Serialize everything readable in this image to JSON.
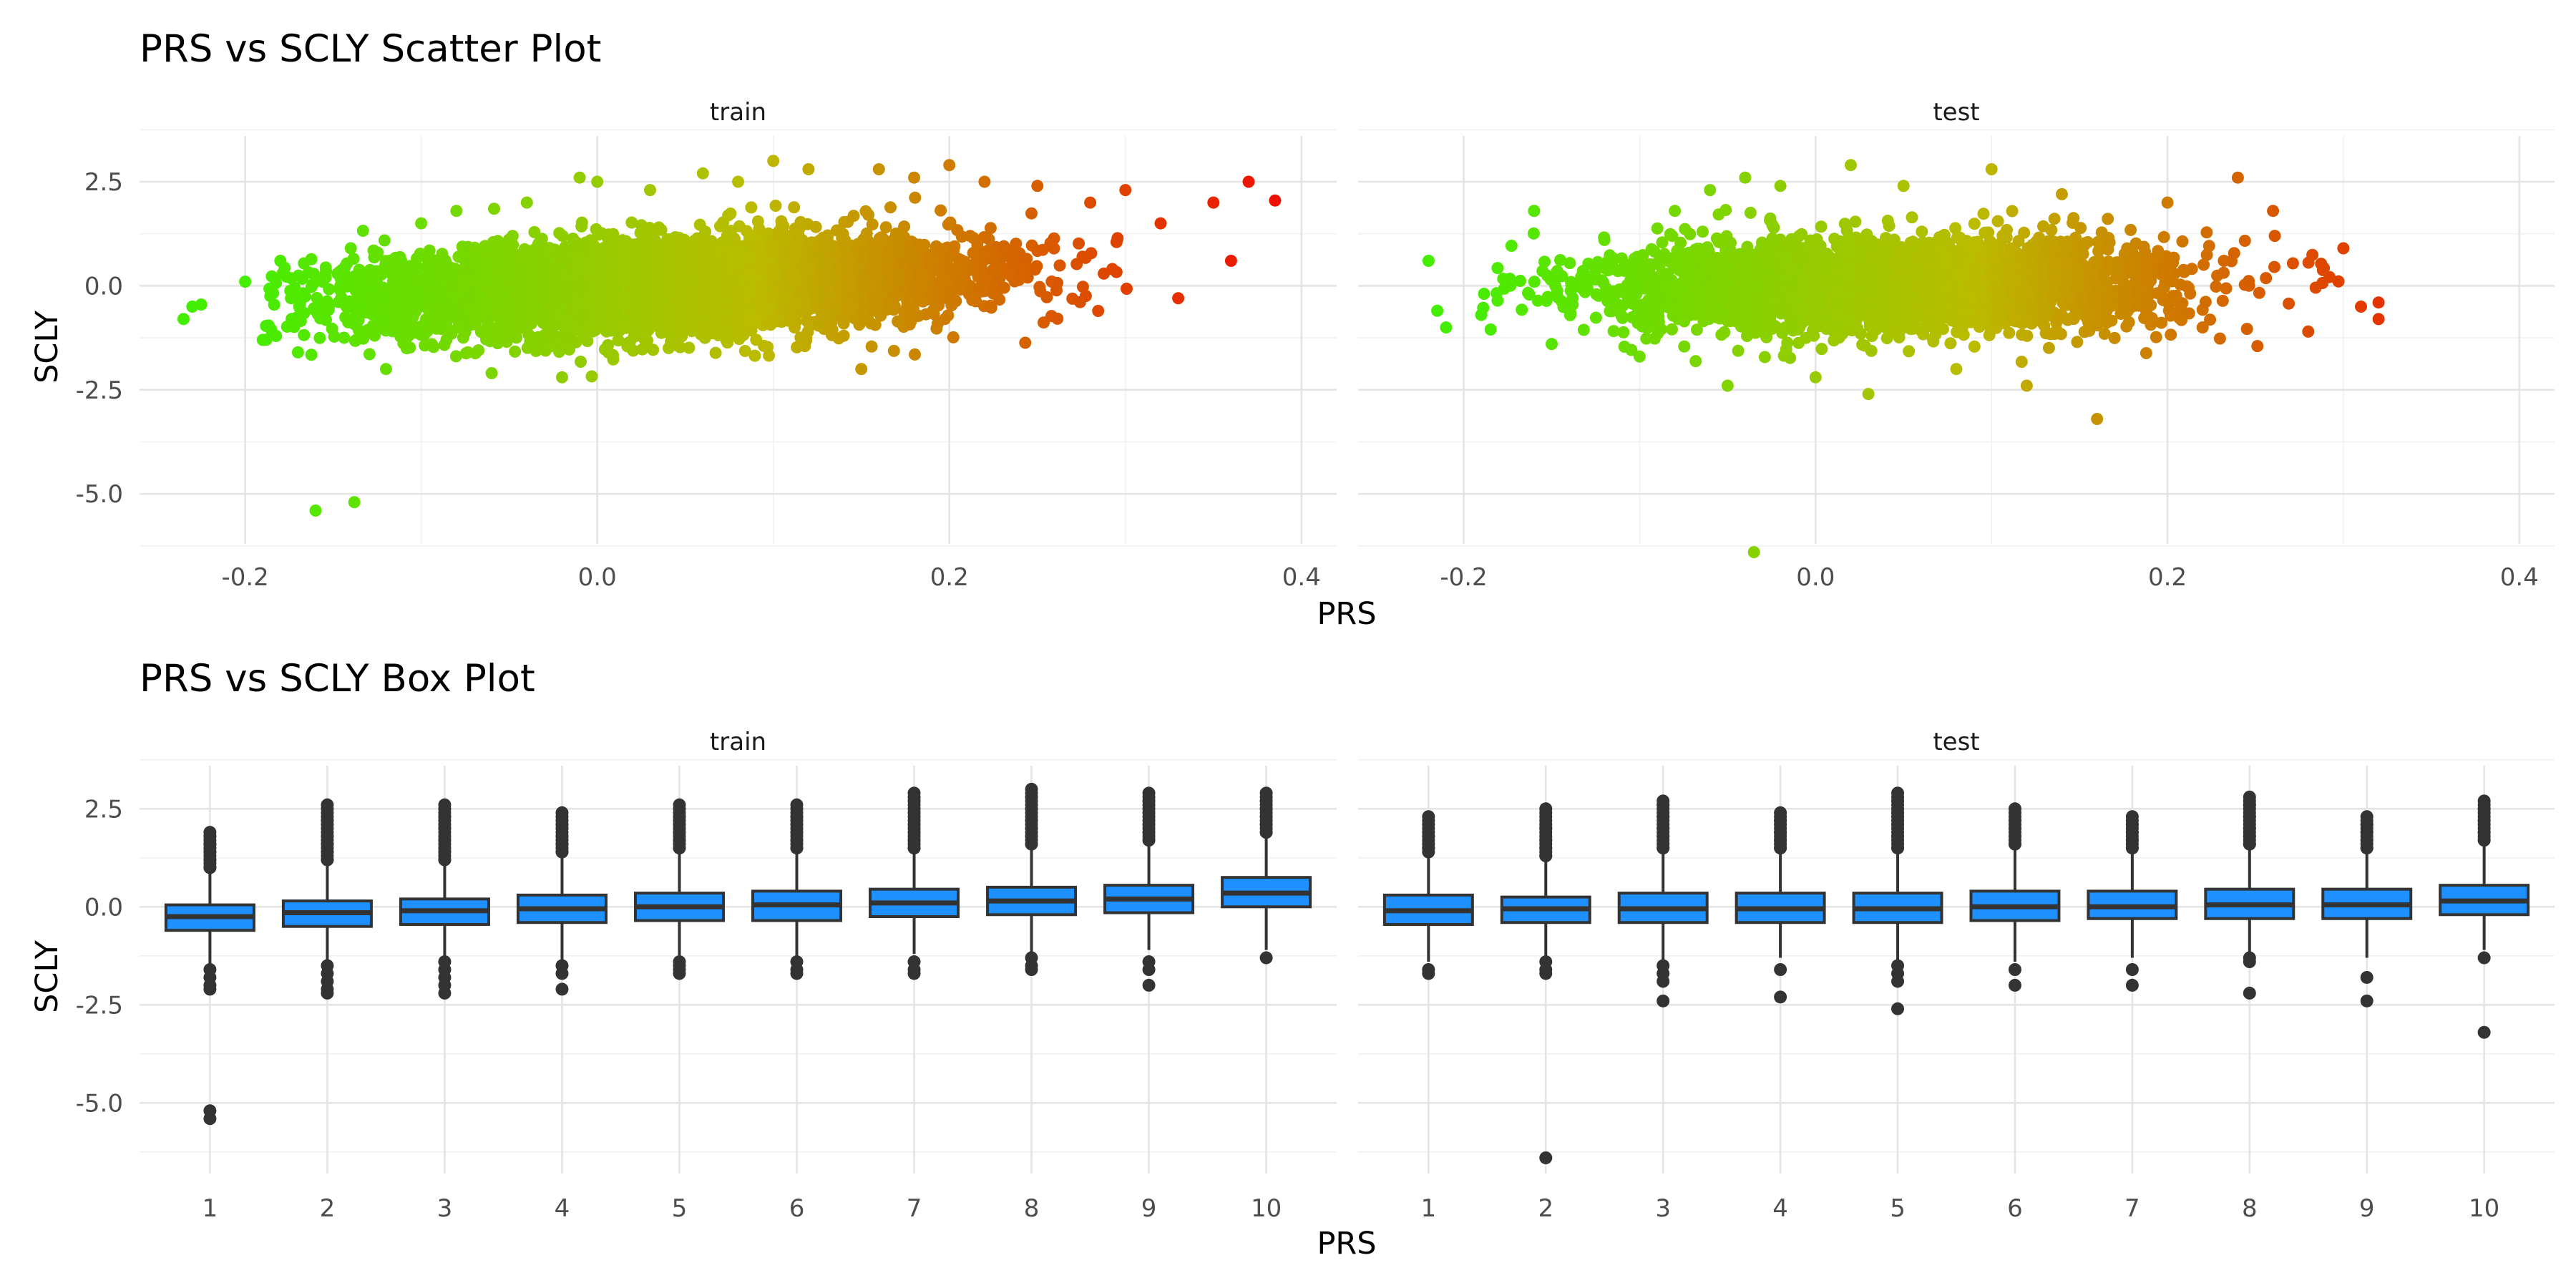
{
  "chart_data": [
    {
      "type": "scatter",
      "title": "PRS vs SCLY Scatter Plot",
      "xlabel": "PRS",
      "ylabel": "SCLY",
      "panels": [
        "train",
        "test"
      ],
      "xlim": [
        -0.26,
        0.42
      ],
      "ylim": [
        -6.2,
        3.6
      ],
      "x_ticks": [
        -0.2,
        0.0,
        0.2,
        0.4
      ],
      "x_tick_labels": [
        "-0.2",
        "0.0",
        "0.2",
        "0.4"
      ],
      "y_ticks": [
        2.5,
        0.0,
        -2.5,
        -5.0
      ],
      "y_tick_labels": [
        "2.5",
        "0.0",
        "-2.5",
        "-5.0"
      ],
      "color_scale": {
        "by": "PRS",
        "low": "#44ee00",
        "mid": "#bbbb00",
        "high": "#ee1100"
      },
      "series": [
        {
          "panel": "train",
          "points": [
            [
              -0.235,
              -0.8
            ],
            [
              -0.23,
              -0.5
            ],
            [
              -0.225,
              -0.45
            ],
            [
              -0.2,
              0.1
            ],
            [
              -0.19,
              -1.3
            ],
            [
              -0.18,
              0.6
            ],
            [
              -0.17,
              -1.6
            ],
            [
              -0.16,
              -5.4
            ],
            [
              -0.138,
              -5.2
            ],
            [
              -0.14,
              0.9
            ],
            [
              -0.12,
              -2.0
            ],
            [
              -0.1,
              1.5
            ],
            [
              -0.08,
              1.8
            ],
            [
              -0.06,
              -2.1
            ],
            [
              -0.04,
              2.0
            ],
            [
              -0.02,
              -2.2
            ],
            [
              -0.01,
              2.6
            ],
            [
              0.0,
              2.5
            ],
            [
              0.03,
              2.3
            ],
            [
              0.06,
              2.7
            ],
            [
              0.08,
              2.5
            ],
            [
              0.1,
              3.0
            ],
            [
              0.12,
              2.8
            ],
            [
              0.14,
              -1.2
            ],
            [
              0.15,
              -2.0
            ],
            [
              0.16,
              2.8
            ],
            [
              0.18,
              2.6
            ],
            [
              0.2,
              2.9
            ],
            [
              0.22,
              2.5
            ],
            [
              0.25,
              2.4
            ],
            [
              0.28,
              2.0
            ],
            [
              0.3,
              2.3
            ],
            [
              0.32,
              1.5
            ],
            [
              0.33,
              -0.3
            ],
            [
              0.35,
              2.0
            ],
            [
              0.36,
              0.6
            ],
            [
              0.37,
              2.5
            ],
            [
              0.385,
              2.05
            ]
          ]
        },
        {
          "panel": "test",
          "points": [
            [
              -0.22,
              0.6
            ],
            [
              -0.215,
              -0.6
            ],
            [
              -0.21,
              -1.0
            ],
            [
              -0.19,
              -0.7
            ],
            [
              -0.16,
              1.8
            ],
            [
              -0.15,
              -1.4
            ],
            [
              -0.12,
              1.1
            ],
            [
              -0.1,
              -1.7
            ],
            [
              -0.08,
              1.8
            ],
            [
              -0.06,
              2.3
            ],
            [
              -0.05,
              -2.4
            ],
            [
              -0.04,
              2.6
            ],
            [
              -0.035,
              -6.4
            ],
            [
              -0.02,
              2.4
            ],
            [
              0.0,
              -2.2
            ],
            [
              0.02,
              2.9
            ],
            [
              0.03,
              -2.6
            ],
            [
              0.05,
              2.4
            ],
            [
              0.08,
              -2.0
            ],
            [
              0.1,
              2.8
            ],
            [
              0.12,
              -2.4
            ],
            [
              0.14,
              2.2
            ],
            [
              0.16,
              -3.2
            ],
            [
              0.2,
              2.0
            ],
            [
              0.22,
              -1.0
            ],
            [
              0.24,
              2.6
            ],
            [
              0.26,
              1.8
            ],
            [
              0.28,
              -1.1
            ],
            [
              0.3,
              0.9
            ],
            [
              0.31,
              -0.5
            ],
            [
              0.32,
              -0.4
            ],
            [
              0.32,
              -0.8
            ]
          ]
        }
      ]
    },
    {
      "type": "box",
      "title": "PRS vs SCLY Box Plot",
      "xlabel": "PRS",
      "ylabel": "SCLY",
      "panels": [
        "train",
        "test"
      ],
      "categories": [
        "1",
        "2",
        "3",
        "4",
        "5",
        "6",
        "7",
        "8",
        "9",
        "10"
      ],
      "ylim": [
        -6.8,
        3.6
      ],
      "y_ticks": [
        2.5,
        0.0,
        -2.5,
        -5.0
      ],
      "y_tick_labels": [
        "2.5",
        "0.0",
        "-2.5",
        "-5.0"
      ],
      "box_color": "#1e90ff",
      "series": [
        {
          "panel": "train",
          "boxes": [
            {
              "q1": -0.6,
              "median": -0.25,
              "q3": 0.05,
              "low": -1.5,
              "high": 0.9,
              "outliers": [
                1.0,
                1.2,
                1.4,
                1.6,
                1.8,
                1.9,
                -1.6,
                -1.8,
                -2.0,
                -2.1,
                -5.2,
                -5.4
              ]
            },
            {
              "q1": -0.5,
              "median": -0.15,
              "q3": 0.15,
              "low": -1.4,
              "high": 1.1,
              "outliers": [
                1.2,
                1.4,
                1.6,
                1.8,
                2.2,
                2.6,
                -1.5,
                -1.7,
                -1.9,
                -2.1,
                -2.2
              ]
            },
            {
              "q1": -0.45,
              "median": -0.1,
              "q3": 0.2,
              "low": -1.3,
              "high": 1.1,
              "outliers": [
                1.2,
                1.4,
                1.7,
                2.0,
                2.3,
                2.6,
                -1.4,
                -1.6,
                -1.8,
                -2.0,
                -2.2
              ]
            },
            {
              "q1": -0.4,
              "median": -0.05,
              "q3": 0.3,
              "low": -1.4,
              "high": 1.3,
              "outliers": [
                1.4,
                1.6,
                1.8,
                2.1,
                2.4,
                -1.5,
                -1.7,
                -2.1
              ]
            },
            {
              "q1": -0.35,
              "median": 0.0,
              "q3": 0.35,
              "low": -1.3,
              "high": 1.4,
              "outliers": [
                1.5,
                1.7,
                1.9,
                2.1,
                2.3,
                2.6,
                -1.4,
                -1.5,
                -1.6,
                -1.7
              ]
            },
            {
              "q1": -0.35,
              "median": 0.05,
              "q3": 0.4,
              "low": -1.3,
              "high": 1.4,
              "outliers": [
                1.5,
                1.7,
                1.9,
                2.1,
                2.3,
                2.6,
                -1.4,
                -1.6,
                -1.7
              ]
            },
            {
              "q1": -0.25,
              "median": 0.1,
              "q3": 0.45,
              "low": -1.2,
              "high": 1.4,
              "outliers": [
                1.5,
                1.7,
                1.9,
                2.1,
                2.4,
                2.7,
                2.9,
                -1.4,
                -1.6,
                -1.7
              ]
            },
            {
              "q1": -0.2,
              "median": 0.15,
              "q3": 0.5,
              "low": -1.2,
              "high": 1.5,
              "outliers": [
                1.6,
                1.8,
                2.0,
                2.2,
                2.5,
                2.8,
                3.0,
                -1.3,
                -1.5,
                -1.6
              ]
            },
            {
              "q1": -0.15,
              "median": 0.2,
              "q3": 0.55,
              "low": -1.1,
              "high": 1.6,
              "outliers": [
                1.7,
                1.9,
                2.1,
                2.4,
                2.7,
                2.9,
                -1.4,
                -1.6,
                -2.0
              ]
            },
            {
              "q1": 0.0,
              "median": 0.35,
              "q3": 0.75,
              "low": -1.1,
              "high": 1.8,
              "outliers": [
                1.9,
                2.1,
                2.3,
                2.5,
                2.7,
                2.9,
                -1.3
              ]
            }
          ]
        },
        {
          "panel": "test",
          "boxes": [
            {
              "q1": -0.45,
              "median": -0.1,
              "q3": 0.3,
              "low": -1.4,
              "high": 1.3,
              "outliers": [
                1.5,
                1.8,
                2.3,
                -1.6,
                -1.7
              ]
            },
            {
              "q1": -0.4,
              "median": -0.05,
              "q3": 0.25,
              "low": -1.3,
              "high": 1.2,
              "outliers": [
                1.3,
                1.5,
                1.7,
                2.0,
                2.5,
                -1.4,
                -1.6,
                -1.7,
                -6.4
              ]
            },
            {
              "q1": -0.4,
              "median": -0.05,
              "q3": 0.35,
              "low": -1.4,
              "high": 1.4,
              "outliers": [
                1.5,
                1.8,
                2.0,
                2.3,
                2.6,
                2.7,
                -1.5,
                -1.7,
                -1.9,
                -2.4
              ]
            },
            {
              "q1": -0.4,
              "median": -0.05,
              "q3": 0.35,
              "low": -1.3,
              "high": 1.4,
              "outliers": [
                1.5,
                1.7,
                1.9,
                2.2,
                2.4,
                -1.6,
                -2.3
              ]
            },
            {
              "q1": -0.4,
              "median": -0.05,
              "q3": 0.35,
              "low": -1.4,
              "high": 1.4,
              "outliers": [
                1.5,
                1.8,
                2.1,
                2.4,
                2.7,
                2.9,
                -1.5,
                -1.7,
                -1.9,
                -2.6
              ]
            },
            {
              "q1": -0.35,
              "median": 0.0,
              "q3": 0.4,
              "low": -1.4,
              "high": 1.5,
              "outliers": [
                1.6,
                1.8,
                2.0,
                2.2,
                2.5,
                -1.6,
                -2.0
              ]
            },
            {
              "q1": -0.3,
              "median": 0.0,
              "q3": 0.4,
              "low": -1.3,
              "high": 1.4,
              "outliers": [
                1.5,
                1.7,
                1.9,
                2.1,
                2.3,
                -1.6,
                -2.0
              ]
            },
            {
              "q1": -0.3,
              "median": 0.05,
              "q3": 0.45,
              "low": -1.3,
              "high": 1.5,
              "outliers": [
                1.6,
                1.8,
                2.0,
                2.3,
                2.6,
                2.8,
                -1.3,
                -1.4,
                -2.2
              ]
            },
            {
              "q1": -0.3,
              "median": 0.05,
              "q3": 0.45,
              "low": -1.3,
              "high": 1.4,
              "outliers": [
                1.5,
                1.7,
                1.9,
                2.1,
                2.3,
                -1.8,
                -2.4
              ]
            },
            {
              "q1": -0.2,
              "median": 0.15,
              "q3": 0.55,
              "low": -1.1,
              "high": 1.6,
              "outliers": [
                1.7,
                1.9,
                2.2,
                2.5,
                2.7,
                -1.3,
                -3.2
              ]
            }
          ]
        }
      ]
    }
  ]
}
